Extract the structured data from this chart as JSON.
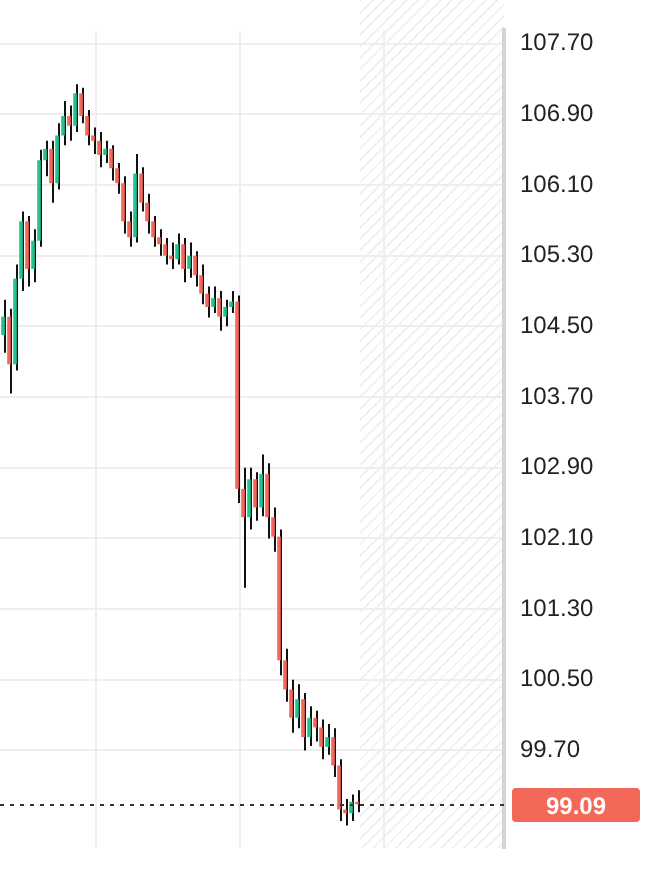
{
  "chart_data": {
    "type": "candlestick",
    "categories": [
      null,
      null,
      null,
      null,
      null,
      null,
      null,
      null,
      null,
      null,
      null,
      null,
      null,
      null,
      null,
      null,
      null,
      null,
      null,
      null,
      null,
      null,
      null,
      null,
      null,
      null,
      null,
      null,
      null,
      null,
      null,
      null,
      null,
      null,
      null,
      null,
      null,
      null,
      null,
      null,
      null,
      null,
      null,
      null,
      null,
      null,
      null,
      null,
      null,
      null,
      null,
      null,
      null,
      null,
      null,
      null,
      null,
      null,
      null,
      null,
      null,
      null,
      null,
      null,
      null,
      null,
      null,
      null,
      null,
      null,
      null,
      null,
      null,
      null,
      null,
      null,
      null,
      null,
      null,
      null,
      null,
      null,
      null,
      null
    ],
    "ohlc": [
      [
        104.4,
        104.8,
        104.2,
        104.61
      ],
      [
        104.61,
        104.7,
        103.74,
        104.07
      ],
      [
        104.07,
        105.2,
        104.0,
        105.04
      ],
      [
        105.04,
        105.8,
        104.9,
        105.69
      ],
      [
        105.69,
        105.75,
        104.95,
        105.15
      ],
      [
        105.15,
        105.6,
        105.0,
        105.47
      ],
      [
        105.47,
        106.5,
        105.4,
        106.38
      ],
      [
        106.38,
        106.6,
        106.2,
        106.51
      ],
      [
        106.51,
        106.6,
        105.9,
        106.12
      ],
      [
        106.12,
        106.8,
        106.05,
        106.66
      ],
      [
        106.66,
        107.05,
        106.55,
        106.88
      ],
      [
        106.88,
        107.0,
        106.6,
        106.77
      ],
      [
        106.77,
        107.24,
        106.7,
        107.14
      ],
      [
        107.14,
        107.2,
        106.8,
        106.88
      ],
      [
        106.88,
        106.95,
        106.55,
        106.66
      ],
      [
        106.66,
        106.75,
        106.45,
        106.6
      ],
      [
        106.6,
        106.7,
        106.3,
        106.44
      ],
      [
        106.44,
        106.6,
        106.35,
        106.51
      ],
      [
        106.51,
        106.55,
        106.15,
        106.29
      ],
      [
        106.29,
        106.35,
        106.0,
        106.12
      ],
      [
        106.12,
        106.2,
        105.55,
        105.69
      ],
      [
        105.69,
        105.8,
        105.4,
        105.51
      ],
      [
        105.51,
        106.45,
        105.45,
        106.23
      ],
      [
        106.23,
        106.3,
        105.8,
        105.9
      ],
      [
        105.9,
        106.0,
        105.55,
        105.69
      ],
      [
        105.69,
        105.75,
        105.4,
        105.51
      ],
      [
        105.51,
        105.6,
        105.3,
        105.43
      ],
      [
        105.43,
        105.5,
        105.2,
        105.3
      ],
      [
        105.3,
        105.45,
        105.15,
        105.26
      ],
      [
        105.26,
        105.55,
        105.2,
        105.43
      ],
      [
        105.43,
        105.5,
        105.0,
        105.15
      ],
      [
        105.15,
        105.45,
        105.05,
        105.3
      ],
      [
        105.3,
        105.35,
        104.95,
        105.08
      ],
      [
        105.08,
        105.2,
        104.75,
        104.87
      ],
      [
        104.87,
        104.95,
        104.6,
        104.72
      ],
      [
        104.72,
        104.95,
        104.65,
        104.82
      ],
      [
        104.82,
        104.9,
        104.45,
        104.61
      ],
      [
        104.61,
        104.8,
        104.5,
        104.72
      ],
      [
        104.72,
        104.9,
        104.65,
        104.78
      ],
      [
        104.78,
        104.85,
        102.5,
        102.66
      ],
      [
        102.66,
        102.9,
        101.54,
        102.34
      ],
      [
        102.34,
        102.9,
        102.2,
        102.77
      ],
      [
        102.77,
        102.85,
        102.3,
        102.45
      ],
      [
        102.45,
        103.05,
        102.35,
        102.83
      ],
      [
        102.83,
        102.95,
        102.1,
        102.34
      ],
      [
        102.34,
        102.45,
        101.95,
        102.12
      ],
      [
        102.12,
        102.2,
        100.55,
        100.72
      ],
      [
        100.72,
        100.85,
        100.25,
        100.39
      ],
      [
        100.39,
        100.5,
        99.9,
        100.07
      ],
      [
        100.07,
        100.45,
        99.95,
        100.28
      ],
      [
        100.28,
        100.35,
        99.7,
        99.85
      ],
      [
        99.85,
        100.2,
        99.75,
        100.07
      ],
      [
        100.07,
        100.15,
        99.8,
        99.96
      ],
      [
        99.96,
        100.05,
        99.6,
        99.74
      ],
      [
        99.74,
        100.0,
        99.65,
        99.85
      ],
      [
        99.85,
        99.95,
        99.4,
        99.53
      ],
      [
        99.53,
        99.6,
        98.9,
        99.03
      ],
      [
        99.03,
        99.15,
        98.85,
        98.99
      ],
      [
        98.99,
        99.2,
        98.9,
        99.12
      ],
      [
        99.12,
        99.25,
        99.0,
        99.09
      ],
      null,
      null,
      null,
      null,
      null,
      null,
      null,
      null,
      null,
      null,
      null,
      null,
      null,
      null,
      null,
      null,
      null,
      null,
      null,
      null,
      null,
      null,
      null,
      null
    ],
    "colors": [
      "#22c38e",
      "#f4685a",
      "#22c38e",
      "#22c38e",
      "#f4685a",
      "#22c38e",
      "#22c38e",
      "#22c38e",
      "#f4685a",
      "#22c38e",
      "#22c38e",
      "#f4685a",
      "#22c38e",
      "#f4685a",
      "#f4685a",
      "#f4685a",
      "#f4685a",
      "#22c38e",
      "#f4685a",
      "#f4685a",
      "#f4685a",
      "#f4685a",
      "#22c38e",
      "#f4685a",
      "#f4685a",
      "#f4685a",
      "#f4685a",
      "#f4685a",
      "#f4685a",
      "#22c38e",
      "#f4685a",
      "#22c38e",
      "#f4685a",
      "#f4685a",
      "#f4685a",
      "#22c38e",
      "#f4685a",
      "#22c38e",
      "#22c38e",
      "#f4685a",
      "#f4685a",
      "#22c38e",
      "#f4685a",
      "#22c38e",
      "#f4685a",
      "#f4685a",
      "#f4685a",
      "#f4685a",
      "#f4685a",
      "#22c38e",
      "#f4685a",
      "#22c38e",
      "#f4685a",
      "#f4685a",
      "#22c38e",
      "#f4685a",
      "#f4685a",
      "#f4685a",
      "#22c38e",
      "#f4685a",
      null,
      null,
      null,
      null,
      null,
      null,
      null,
      null,
      null,
      null,
      null,
      null,
      null,
      null,
      null,
      null,
      null,
      null,
      null,
      null,
      null,
      null,
      null,
      null
    ],
    "ylim": [
      98.6,
      107.85
    ],
    "yticks": [
      {
        "value": 99.7,
        "label": "99.70"
      },
      {
        "value": 100.5,
        "label": "100.50"
      },
      {
        "value": 101.3,
        "label": "101.30"
      },
      {
        "value": 102.1,
        "label": "102.10"
      },
      {
        "value": 102.9,
        "label": "102.90"
      },
      {
        "value": 103.7,
        "label": "103.70"
      },
      {
        "value": 104.5,
        "label": "104.50"
      },
      {
        "value": 105.3,
        "label": "105.30"
      },
      {
        "value": 106.1,
        "label": "106.10"
      },
      {
        "value": 106.9,
        "label": "106.90"
      },
      {
        "value": 107.7,
        "label": "107.70"
      }
    ],
    "ref_lines": [
      {
        "axis": "y",
        "value": 99.09,
        "label": "99.09",
        "color": "#333333",
        "line_style": "dotted"
      }
    ],
    "grid": true,
    "tick_labels": "y"
  }
}
